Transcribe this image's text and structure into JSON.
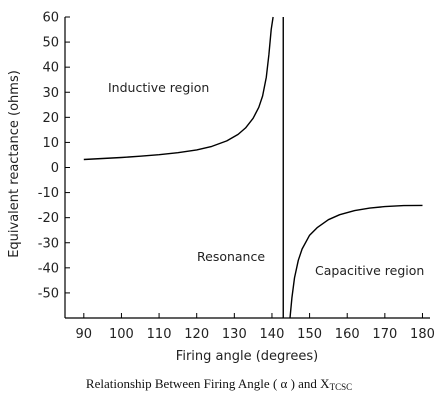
{
  "chart_data": {
    "type": "line",
    "xlabel": "Firing angle (degrees)",
    "ylabel": "Equivalent reactance (ohms)",
    "xlim": [
      85,
      182
    ],
    "ylim": [
      -60,
      60
    ],
    "x_ticks": [
      90,
      100,
      110,
      120,
      130,
      140,
      150,
      160,
      170,
      180
    ],
    "y_ticks": [
      60,
      50,
      40,
      30,
      20,
      10,
      0,
      -10,
      -20,
      -30,
      -40,
      -50
    ],
    "series": [
      {
        "points": [
          [
            90,
            3.2
          ],
          [
            95,
            3.6
          ],
          [
            100,
            4.0
          ],
          [
            105,
            4.5
          ],
          [
            110,
            5.1
          ],
          [
            115,
            5.9
          ],
          [
            120,
            7.0
          ],
          [
            124,
            8.4
          ],
          [
            128,
            10.6
          ],
          [
            131,
            13.2
          ],
          [
            133,
            15.8
          ],
          [
            135,
            19.6
          ],
          [
            136.5,
            24
          ],
          [
            137.5,
            28.5
          ],
          [
            138.5,
            36
          ],
          [
            139.2,
            45
          ],
          [
            139.8,
            55
          ],
          [
            140.3,
            60
          ]
        ]
      },
      {
        "points": [
          [
            144.8,
            -60
          ],
          [
            145.3,
            -52
          ],
          [
            146,
            -44
          ],
          [
            147,
            -37
          ],
          [
            148,
            -32.5
          ],
          [
            150,
            -27
          ],
          [
            152,
            -24
          ],
          [
            155,
            -20.8
          ],
          [
            158,
            -18.8
          ],
          [
            162,
            -17.2
          ],
          [
            166,
            -16.2
          ],
          [
            170,
            -15.6
          ],
          [
            175,
            -15.2
          ],
          [
            180,
            -15.1
          ]
        ]
      }
    ],
    "resonance_x": 143,
    "annotations": {
      "inductive": "Inductive region",
      "resonance": "Resonance",
      "capacitive": "Capacitive region"
    }
  },
  "caption": {
    "prefix": "Relationship Between Firing Angle ( α ) and X",
    "subscript": "TCSC"
  }
}
